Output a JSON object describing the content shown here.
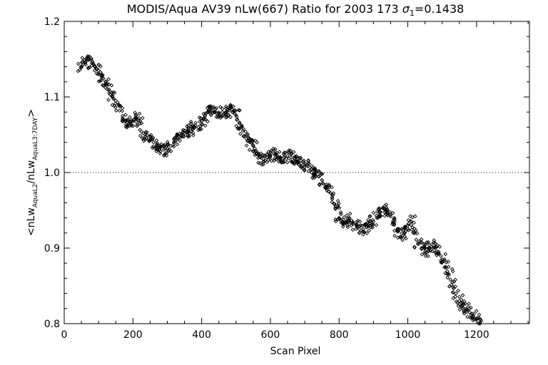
{
  "chart_data": {
    "type": "scatter",
    "title": "MODIS/Aqua AV39 nLw(667) Ratio for 2003 173 σ₁=0.1438",
    "title_parts": {
      "prefix": "MODIS/Aqua AV39 nLw(667) Ratio for 2003 173 ",
      "sigma": "σ",
      "sigma_sub": "1",
      "suffix": "=0.1438"
    },
    "xlabel": "Scan Pixel",
    "ylabel_parts": {
      "open": "<nLw",
      "sub1": "AquaL2",
      "mid": "/nLw",
      "sub2": "AquaL3:7DAY",
      "close": ">"
    },
    "xlim": [
      0,
      1354
    ],
    "ylim": [
      0.8,
      1.2
    ],
    "x_ticks": [
      "0",
      "200",
      "400",
      "600",
      "800",
      "1000",
      "1200"
    ],
    "x_tick_values": [
      0,
      200,
      400,
      600,
      800,
      1000,
      1200
    ],
    "y_ticks": [
      "0.8",
      "0.9",
      "1.0",
      "1.1",
      "1.2"
    ],
    "y_tick_values": [
      0.8,
      0.9,
      1.0,
      1.1,
      1.2
    ],
    "reference_line": 1.0,
    "grid": false,
    "marker": "diamond",
    "series": [
      {
        "x": [
          50,
          60,
          70,
          80,
          90,
          100,
          110,
          120,
          130,
          140,
          150,
          160,
          170,
          180,
          190,
          200,
          210,
          220,
          230,
          240,
          250,
          260,
          270,
          280,
          290,
          300,
          310,
          320,
          330,
          340,
          350,
          360,
          370,
          380,
          390,
          400,
          410,
          420,
          430,
          440,
          450,
          460,
          470,
          480,
          490,
          500,
          510,
          520,
          530,
          540,
          550,
          560,
          570,
          580,
          590,
          600,
          610,
          620,
          630,
          640,
          650,
          660,
          670,
          680,
          690,
          700,
          710,
          720,
          730,
          740,
          750,
          760,
          770,
          780,
          790,
          800,
          810,
          820,
          830,
          840,
          850,
          860,
          870,
          880,
          890,
          900,
          910,
          920,
          930,
          940,
          950,
          960,
          970,
          980,
          990,
          1000,
          1010,
          1020,
          1030,
          1040,
          1050,
          1060,
          1070,
          1080,
          1090,
          1100,
          1110,
          1120,
          1130,
          1140,
          1150,
          1160,
          1170,
          1180,
          1190,
          1200,
          1210
        ],
        "y": [
          1.14,
          1.145,
          1.15,
          1.145,
          1.14,
          1.135,
          1.128,
          1.12,
          1.11,
          1.1,
          1.095,
          1.088,
          1.075,
          1.068,
          1.062,
          1.068,
          1.072,
          1.065,
          1.052,
          1.045,
          1.048,
          1.04,
          1.032,
          1.028,
          1.03,
          1.032,
          1.035,
          1.04,
          1.045,
          1.05,
          1.052,
          1.055,
          1.055,
          1.06,
          1.06,
          1.068,
          1.075,
          1.08,
          1.082,
          1.08,
          1.078,
          1.08,
          1.08,
          1.082,
          1.08,
          1.076,
          1.065,
          1.055,
          1.045,
          1.04,
          1.035,
          1.025,
          1.02,
          1.018,
          1.02,
          1.022,
          1.025,
          1.022,
          1.02,
          1.02,
          1.022,
          1.02,
          1.018,
          1.015,
          1.012,
          1.01,
          1.008,
          1.0,
          0.998,
          0.995,
          0.99,
          0.98,
          0.975,
          0.965,
          0.955,
          0.94,
          0.935,
          0.935,
          0.94,
          0.932,
          0.93,
          0.925,
          0.925,
          0.928,
          0.93,
          0.935,
          0.94,
          0.948,
          0.952,
          0.95,
          0.942,
          0.932,
          0.922,
          0.915,
          0.92,
          0.93,
          0.935,
          0.92,
          0.905,
          0.9,
          0.895,
          0.9,
          0.905,
          0.9,
          0.895,
          0.885,
          0.875,
          0.865,
          0.855,
          0.84,
          0.83,
          0.825,
          0.82,
          0.815,
          0.81,
          0.805,
          0.8
        ]
      }
    ]
  }
}
